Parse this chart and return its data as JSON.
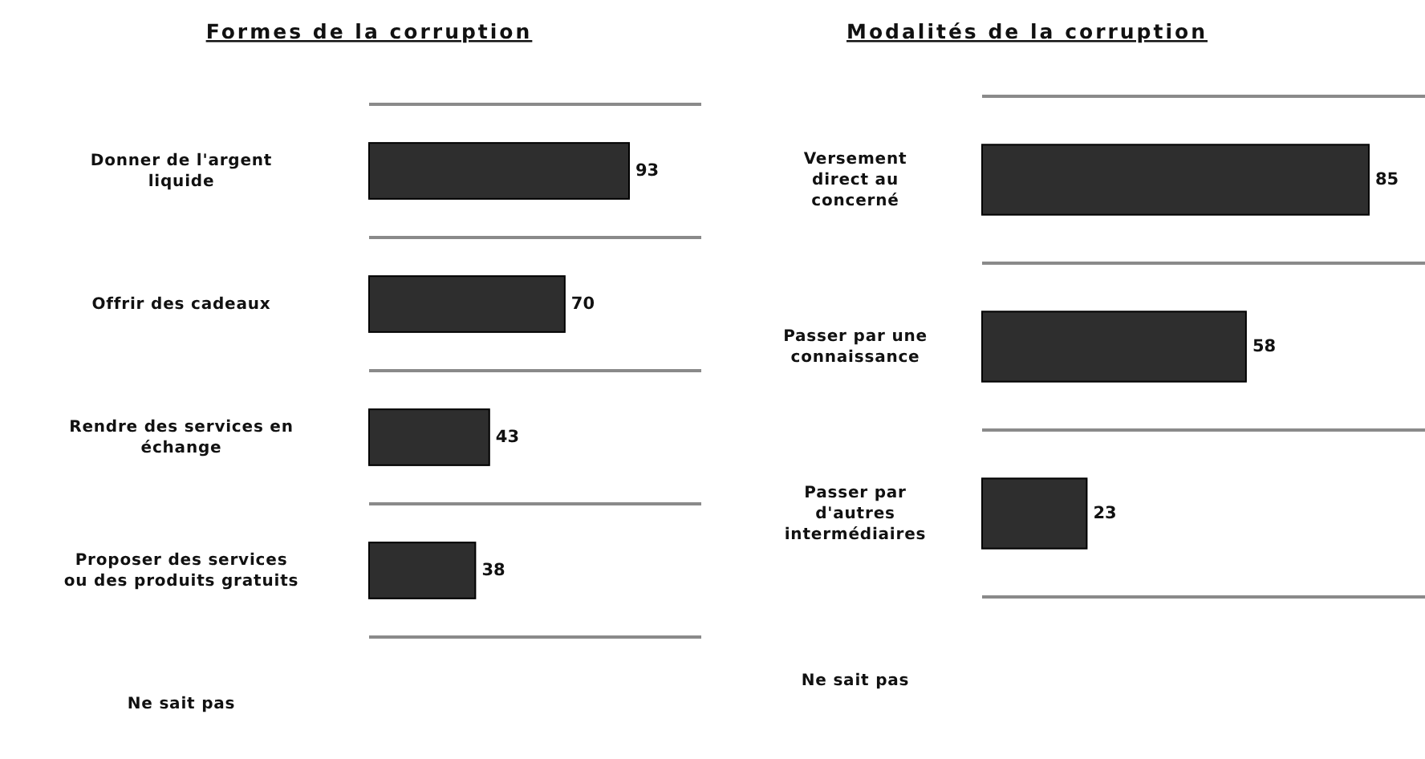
{
  "chart_data": [
    {
      "type": "bar",
      "orientation": "horizontal",
      "title": "Formes de la corruption",
      "categories": [
        "Donner de l'argent\nliquide",
        "Offrir des cadeaux",
        "Rendre des services en\néchange",
        "Proposer des services\nou des produits gratuits",
        "Ne sait pas"
      ],
      "values": [
        93,
        70,
        43,
        38,
        null
      ],
      "color": "#2e2e2e",
      "data_labels": true,
      "grid": true
    },
    {
      "type": "bar",
      "orientation": "horizontal",
      "title": "Modalités de la corruption",
      "categories": [
        "Versement\ndirect au\nconcerné",
        "Passer par une\nconnaissance",
        "Passer par\nd'autres\nintermédiaires",
        "Ne sait pas"
      ],
      "values": [
        85,
        58,
        23,
        null
      ],
      "color": "#2e2e2e",
      "data_labels": true,
      "grid": true
    }
  ]
}
